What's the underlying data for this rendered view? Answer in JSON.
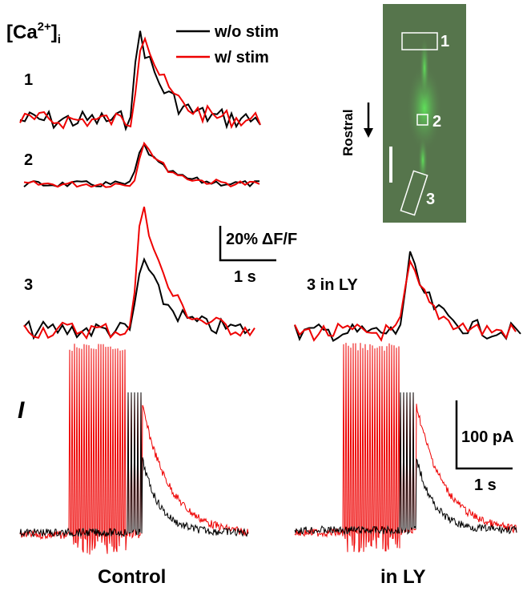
{
  "header": {
    "ca_prefix": "[Ca",
    "ca_sup": "2+",
    "ca_bracket": "]",
    "ca_sub": "i"
  },
  "legend": {
    "black": "w/o stim",
    "red": "w/ stim"
  },
  "traces": {
    "t1": "1",
    "t2": "2",
    "t3": "3",
    "t3ly": "3 in LY"
  },
  "scale_ca": {
    "amp": "20% ΔF/F",
    "time": "1 s"
  },
  "image": {
    "roi1": "1",
    "roi2": "2",
    "roi3": "3",
    "direction": "Rostral"
  },
  "current": {
    "panel": "I",
    "scale_amp": "100 pA",
    "scale_time": "1 s",
    "control": "Control",
    "ly": "in LY"
  }
}
